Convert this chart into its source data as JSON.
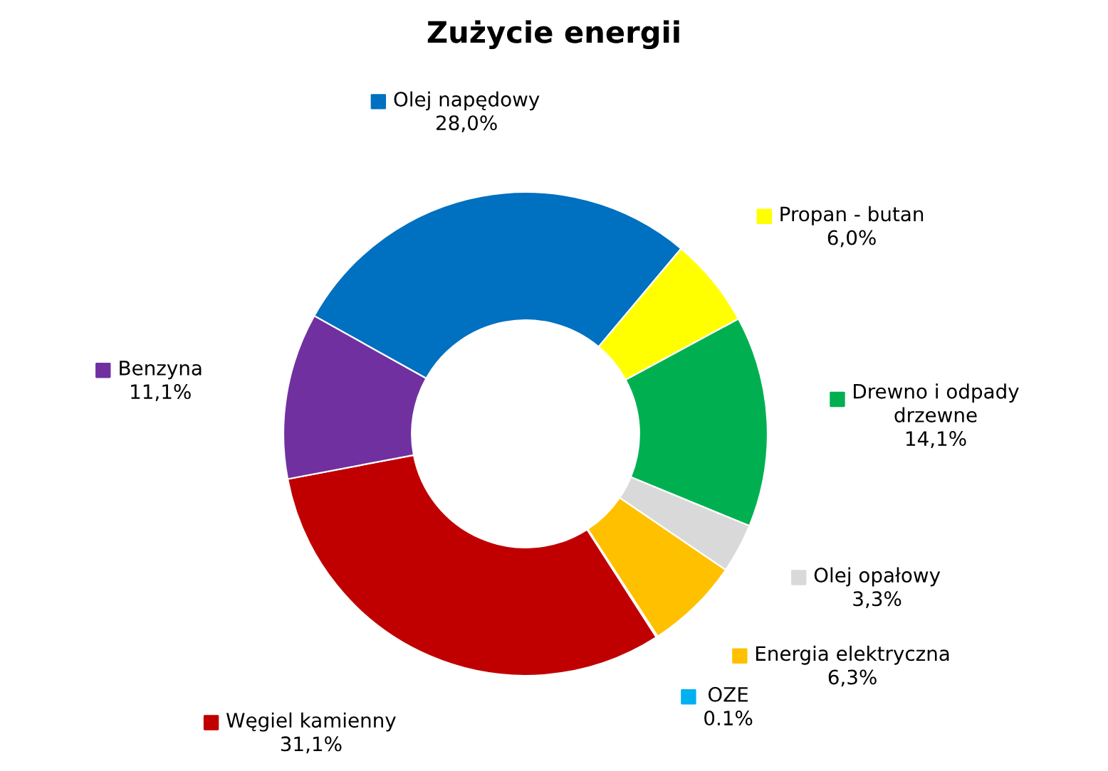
{
  "chart_data": {
    "type": "donut",
    "title": "Zużycie energii",
    "categories": [
      "Olej napędowy",
      "Propan - butan",
      "Drewno i odpady drzewne",
      "Olej opałowy",
      "Energia elektryczna",
      "OZE",
      "Węgiel kamienny",
      "Benzyna"
    ],
    "values": [
      28.0,
      6.0,
      14.1,
      3.3,
      6.3,
      0.1,
      31.1,
      11.1
    ],
    "value_labels": [
      "28,0%",
      "6,0%",
      "14,1%",
      "3,3%",
      "6,3%",
      "0.1%",
      "31,1%",
      "11,1%"
    ],
    "legend": "top right",
    "colors": [
      "#0070c0",
      "#ffff00",
      "#00b050",
      "#d9d9d9",
      "#ffc000",
      "#00b0f0",
      "#c00000",
      "#7030a0"
    ]
  }
}
